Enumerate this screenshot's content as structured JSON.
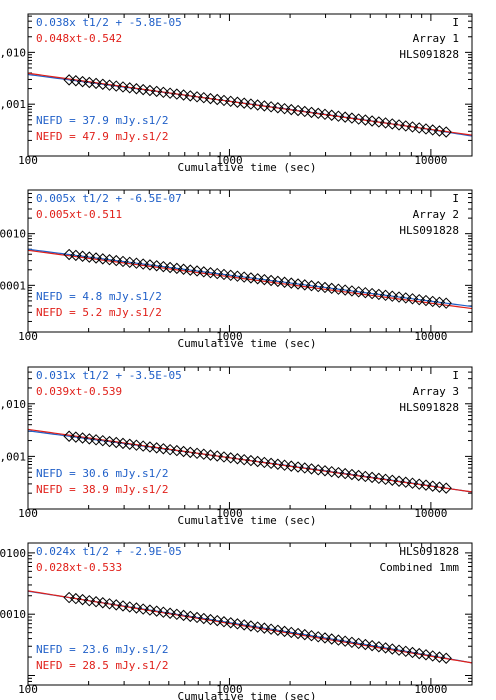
{
  "chart_data": [
    {
      "type": "scatter",
      "xscale": "log",
      "yscale": "log",
      "xlim": [
        100,
        16000
      ],
      "ylim": [
        0.0001,
        0.055
      ],
      "xticks": [
        "100",
        "1000",
        "10000"
      ],
      "yticks": [
        ",010",
        ",001"
      ],
      "xlabel": "Cumulative time (sec)",
      "tag": "I",
      "label_lines": [
        "Array 1",
        "HLS091828"
      ],
      "fit_lines": [
        "0.038x t1/2 + -5.8E-05",
        "0.048xt-0.542"
      ],
      "nefd_lines": [
        "NEFD = 37.9 mJy.s1/2",
        "NEFD = 47.9 mJy.s1/2"
      ],
      "fit_sqrt": {
        "a": 0.038,
        "b": -5.8e-05
      },
      "fit_pow": {
        "a": 0.048,
        "b": -0.542
      },
      "x_first": 160,
      "x_last": 12500
    },
    {
      "type": "scatter",
      "xscale": "log",
      "yscale": "log",
      "xlim": [
        100,
        16000
      ],
      "ylim": [
        1.25e-05,
        0.007
      ],
      "xticks": [
        "100",
        "1000",
        "10000"
      ],
      "yticks": [
        ",0010",
        ",0001"
      ],
      "xlabel": "Cumulative time (sec)",
      "tag": "I",
      "label_lines": [
        "Array 2",
        "HLS091828"
      ],
      "fit_lines": [
        "0.005x t1/2 + -6.5E-07",
        "0.005xt-0.511"
      ],
      "nefd_lines": [
        "NEFD =  4.8 mJy.s1/2",
        "NEFD =  5.2 mJy.s1/2"
      ],
      "fit_sqrt": {
        "a": 0.005,
        "b": -6.5e-07
      },
      "fit_pow": {
        "a": 0.005,
        "b": -0.511
      },
      "x_first": 160,
      "x_last": 12500
    },
    {
      "type": "scatter",
      "xscale": "log",
      "yscale": "log",
      "xlim": [
        100,
        16000
      ],
      "ylim": [
        0.0001,
        0.05
      ],
      "xticks": [
        "100",
        "1000",
        "10000"
      ],
      "yticks": [
        ",010",
        ",001"
      ],
      "xlabel": "Cumulative time (sec)",
      "tag": "I",
      "label_lines": [
        "Array 3",
        "HLS091828"
      ],
      "fit_lines": [
        "0.031x t1/2 + -3.5E-05",
        "0.039xt-0.539"
      ],
      "nefd_lines": [
        "NEFD = 30.6 mJy.s1/2",
        "NEFD = 38.9 mJy.s1/2"
      ],
      "fit_sqrt": {
        "a": 0.031,
        "b": -3.5e-05
      },
      "fit_pow": {
        "a": 0.039,
        "b": -0.539
      },
      "x_first": 160,
      "x_last": 12500
    },
    {
      "type": "scatter",
      "xscale": "log",
      "yscale": "log",
      "xlim": [
        100,
        16000
      ],
      "ylim": [
        7e-05,
        0.0145
      ],
      "xticks": [
        "100",
        "1000",
        "10000"
      ],
      "yticks": [
        ",0100",
        ",0010"
      ],
      "xlabel": "Cumulative time (sec)",
      "tag": "",
      "label_lines": [
        "HLS091828",
        "Combined 1mm"
      ],
      "fit_lines": [
        "0.024x t1/2 + -2.9E-05",
        "0.028xt-0.533"
      ],
      "nefd_lines": [
        "NEFD = 23.6 mJy.s1/2",
        "NEFD = 28.5 mJy.s1/2"
      ],
      "fit_sqrt": {
        "a": 0.024,
        "b": -2.9e-05
      },
      "fit_pow": {
        "a": 0.028,
        "b": -0.533
      },
      "x_first": 160,
      "x_last": 12500
    }
  ],
  "colors": {
    "sqrt_fit": "#1f5fc8",
    "pow_fit": "#e0201a",
    "axes": "#000000",
    "marker": "#000000"
  }
}
